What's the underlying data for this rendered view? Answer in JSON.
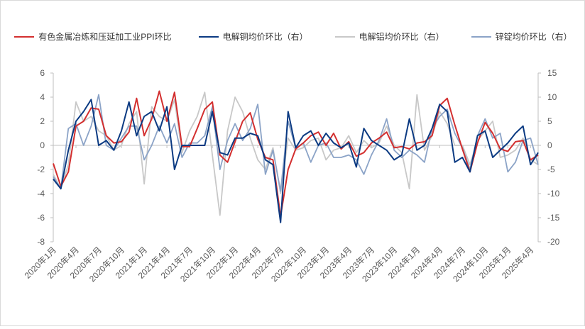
{
  "chart_data": {
    "type": "line",
    "x": [
      "2020年1月",
      "2020年2月",
      "2020年3月",
      "2020年4月",
      "2020年5月",
      "2020年6月",
      "2020年7月",
      "2020年8月",
      "2020年9月",
      "2020年10月",
      "2020年11月",
      "2020年12月",
      "2021年1月",
      "2021年2月",
      "2021年3月",
      "2021年4月",
      "2021年5月",
      "2021年6月",
      "2021年7月",
      "2021年8月",
      "2021年9月",
      "2021年10月",
      "2021年11月",
      "2021年12月",
      "2022年1月",
      "2022年2月",
      "2022年3月",
      "2022年4月",
      "2022年5月",
      "2022年6月",
      "2022年7月",
      "2022年8月",
      "2022年9月",
      "2022年10月",
      "2022年11月",
      "2022年12月",
      "2023年1月",
      "2023年2月",
      "2023年3月",
      "2023年4月",
      "2023年5月",
      "2023年6月",
      "2023年7月",
      "2023年8月",
      "2023年9月",
      "2023年10月",
      "2023年11月",
      "2023年12月",
      "2024年1月",
      "2024年2月",
      "2024年3月",
      "2024年4月",
      "2024年5月",
      "2024年6月",
      "2024年7月",
      "2024年8月",
      "2024年9月",
      "2024年10月",
      "2024年11月",
      "2024年12月",
      "2025年1月",
      "2025年2月",
      "2025年3月",
      "2025年4月",
      "2025年5月"
    ],
    "x_tick_labels": [
      "2020年1月",
      "2020年4月",
      "2020年7月",
      "2020年10月",
      "2021年1月",
      "2021年4月",
      "2021年7月",
      "2021年10月",
      "2022年1月",
      "2022年4月",
      "2022年7月",
      "2022年10月",
      "2023年1月",
      "2023年4月",
      "2023年7月",
      "2023年10月",
      "2024年1月",
      "2024年4月",
      "2024年7月",
      "2024年10月",
      "2025年1月",
      "2025年4月"
    ],
    "y_left": {
      "lim": [
        -8,
        6
      ],
      "ticks": [
        -8,
        -6,
        -4,
        -2,
        0,
        2,
        4,
        6
      ]
    },
    "y_right": {
      "lim": [
        -20,
        15
      ],
      "ticks": [
        -20,
        -15,
        -10,
        -5,
        0,
        5,
        10,
        15
      ]
    },
    "grid": false,
    "legend_position": "top",
    "series": [
      {
        "name": "有色金属冶炼和压延加工业PPI环比",
        "axis": "left",
        "color": "#d32f2f",
        "values": [
          -1.5,
          -3.4,
          -2.2,
          1.6,
          2.0,
          3.1,
          3.0,
          0.8,
          0.2,
          0.3,
          1.1,
          3.9,
          0.8,
          2.2,
          4.5,
          2.0,
          4.4,
          -0.1,
          -0.1,
          1.4,
          3.0,
          3.6,
          -0.8,
          -1.4,
          0.3,
          2.0,
          2.7,
          0.5,
          -1.0,
          -1.2,
          -5.9,
          -2.0,
          -0.3,
          0.2,
          0.8,
          1.1,
          0.0,
          1.0,
          -0.3,
          0.3,
          -0.9,
          -0.6,
          0.2,
          0.6,
          1.1,
          -0.2,
          -0.1,
          -0.3,
          0.2,
          0.3,
          0.8,
          3.3,
          3.9,
          1.7,
          -0.3,
          -2.2,
          0.2,
          1.9,
          1.0,
          -0.3,
          -0.5,
          0.3,
          0.4,
          -1.2,
          -0.8
        ]
      },
      {
        "name": "电解铜均价环比（右）",
        "axis": "right",
        "color": "#0b3a82",
        "values": [
          -7.0,
          -9.0,
          -1.0,
          5.0,
          7.0,
          9.5,
          0.0,
          1.0,
          -1.0,
          3.0,
          9.0,
          2.0,
          6.0,
          7.0,
          3.0,
          8.0,
          -5.0,
          0.0,
          0.0,
          0.0,
          0.0,
          7.0,
          -1.5,
          -2.0,
          1.5,
          1.5,
          2.5,
          2.0,
          -3.0,
          -4.0,
          -16.0,
          7.0,
          -0.5,
          2.0,
          3.0,
          0.0,
          2.5,
          0.5,
          -0.5,
          0.5,
          -4.5,
          3.5,
          1.0,
          0.0,
          -1.0,
          -3.0,
          -2.0,
          5.5,
          -1.0,
          0.0,
          3.5,
          8.5,
          7.0,
          -3.5,
          -2.5,
          -5.5,
          2.0,
          3.0,
          -2.5,
          -1.0,
          0.5,
          2.5,
          4.0,
          -4.0,
          -1.5
        ]
      },
      {
        "name": "电解铝均价环比（右）",
        "axis": "right",
        "color": "#c8c8c8",
        "values": [
          -6.0,
          -9.0,
          -4.0,
          9.0,
          5.0,
          6.0,
          3.0,
          2.0,
          -1.0,
          0.0,
          4.5,
          7.0,
          -8.0,
          8.0,
          6.0,
          5.0,
          9.5,
          -1.5,
          3.0,
          6.0,
          11.0,
          -2.0,
          -14.5,
          3.0,
          10.0,
          7.0,
          1.5,
          -3.0,
          -5.0,
          -0.5,
          -10.0,
          1.5,
          -1.0,
          -0.5,
          1.0,
          1.5,
          -3.0,
          -1.0,
          -0.5,
          2.0,
          -1.5,
          1.0,
          -0.5,
          0.5,
          4.0,
          0.0,
          -1.5,
          -9.0,
          10.5,
          -1.0,
          2.0,
          7.0,
          4.5,
          0.0,
          0.0,
          -4.0,
          1.0,
          3.0,
          5.0,
          -2.5,
          -2.0,
          -1.0,
          1.5,
          -3.0,
          -4.0
        ]
      },
      {
        "name": "锌锭均价环比（右）",
        "axis": "right",
        "color": "#8ba3c7",
        "values": [
          -6.5,
          -9.0,
          3.5,
          4.5,
          0.0,
          4.0,
          10.5,
          0.0,
          -1.0,
          1.5,
          4.0,
          4.0,
          -3.0,
          0.0,
          4.0,
          0.5,
          4.5,
          -2.5,
          0.5,
          0.5,
          2.0,
          8.0,
          -5.0,
          1.0,
          4.5,
          1.0,
          3.5,
          8.5,
          -6.0,
          -1.0,
          -9.5,
          5.0,
          -0.5,
          0.5,
          -3.5,
          0.0,
          0.5,
          -2.5,
          -2.5,
          -2.0,
          -3.0,
          -6.0,
          -2.0,
          1.0,
          5.5,
          -1.0,
          -2.5,
          -1.0,
          -2.0,
          -3.5,
          3.5,
          6.0,
          7.5,
          2.5,
          -0.5,
          -5.0,
          2.0,
          5.5,
          1.5,
          2.5,
          -5.5,
          -3.5,
          1.0,
          1.5,
          -4.0
        ]
      }
    ]
  }
}
